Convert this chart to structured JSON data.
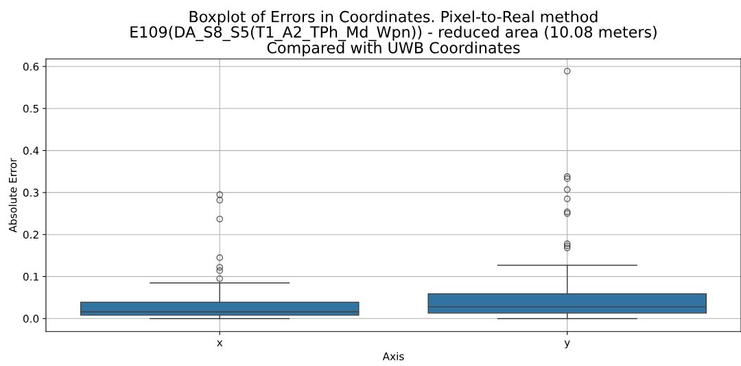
{
  "chart_data": {
    "type": "box",
    "title": "Boxplot of Errors in Coordinates. Pixel-to-Real method\nE109(DA_S8_S5(T1_A2_TPh_Md_Wpn)) - reduced area (10.08 meters)\nCompared with UWB Coordinates",
    "xlabel": "Axis",
    "ylabel": "Absolute Error",
    "categories": [
      "x",
      "y"
    ],
    "color": "#3274a1",
    "boxes": [
      {
        "low": 0.0,
        "q1": 0.008,
        "median": 0.016,
        "q3": 0.039,
        "high": 0.085,
        "outliers": [
          0.295,
          0.282,
          0.237,
          0.145,
          0.122,
          0.114,
          0.095
        ]
      },
      {
        "low": 0.0,
        "q1": 0.013,
        "median": 0.028,
        "q3": 0.059,
        "high": 0.127,
        "outliers": [
          0.589,
          0.338,
          0.333,
          0.307,
          0.285,
          0.254,
          0.25,
          0.178,
          0.173,
          0.168
        ]
      }
    ],
    "ylim": [
      -0.031,
      0.618
    ],
    "yticks": [
      {
        "value": 0,
        "label": "0.0"
      },
      0.1,
      0.2,
      0.3,
      0.4,
      0.5,
      0.6
    ],
    "grid": true
  }
}
